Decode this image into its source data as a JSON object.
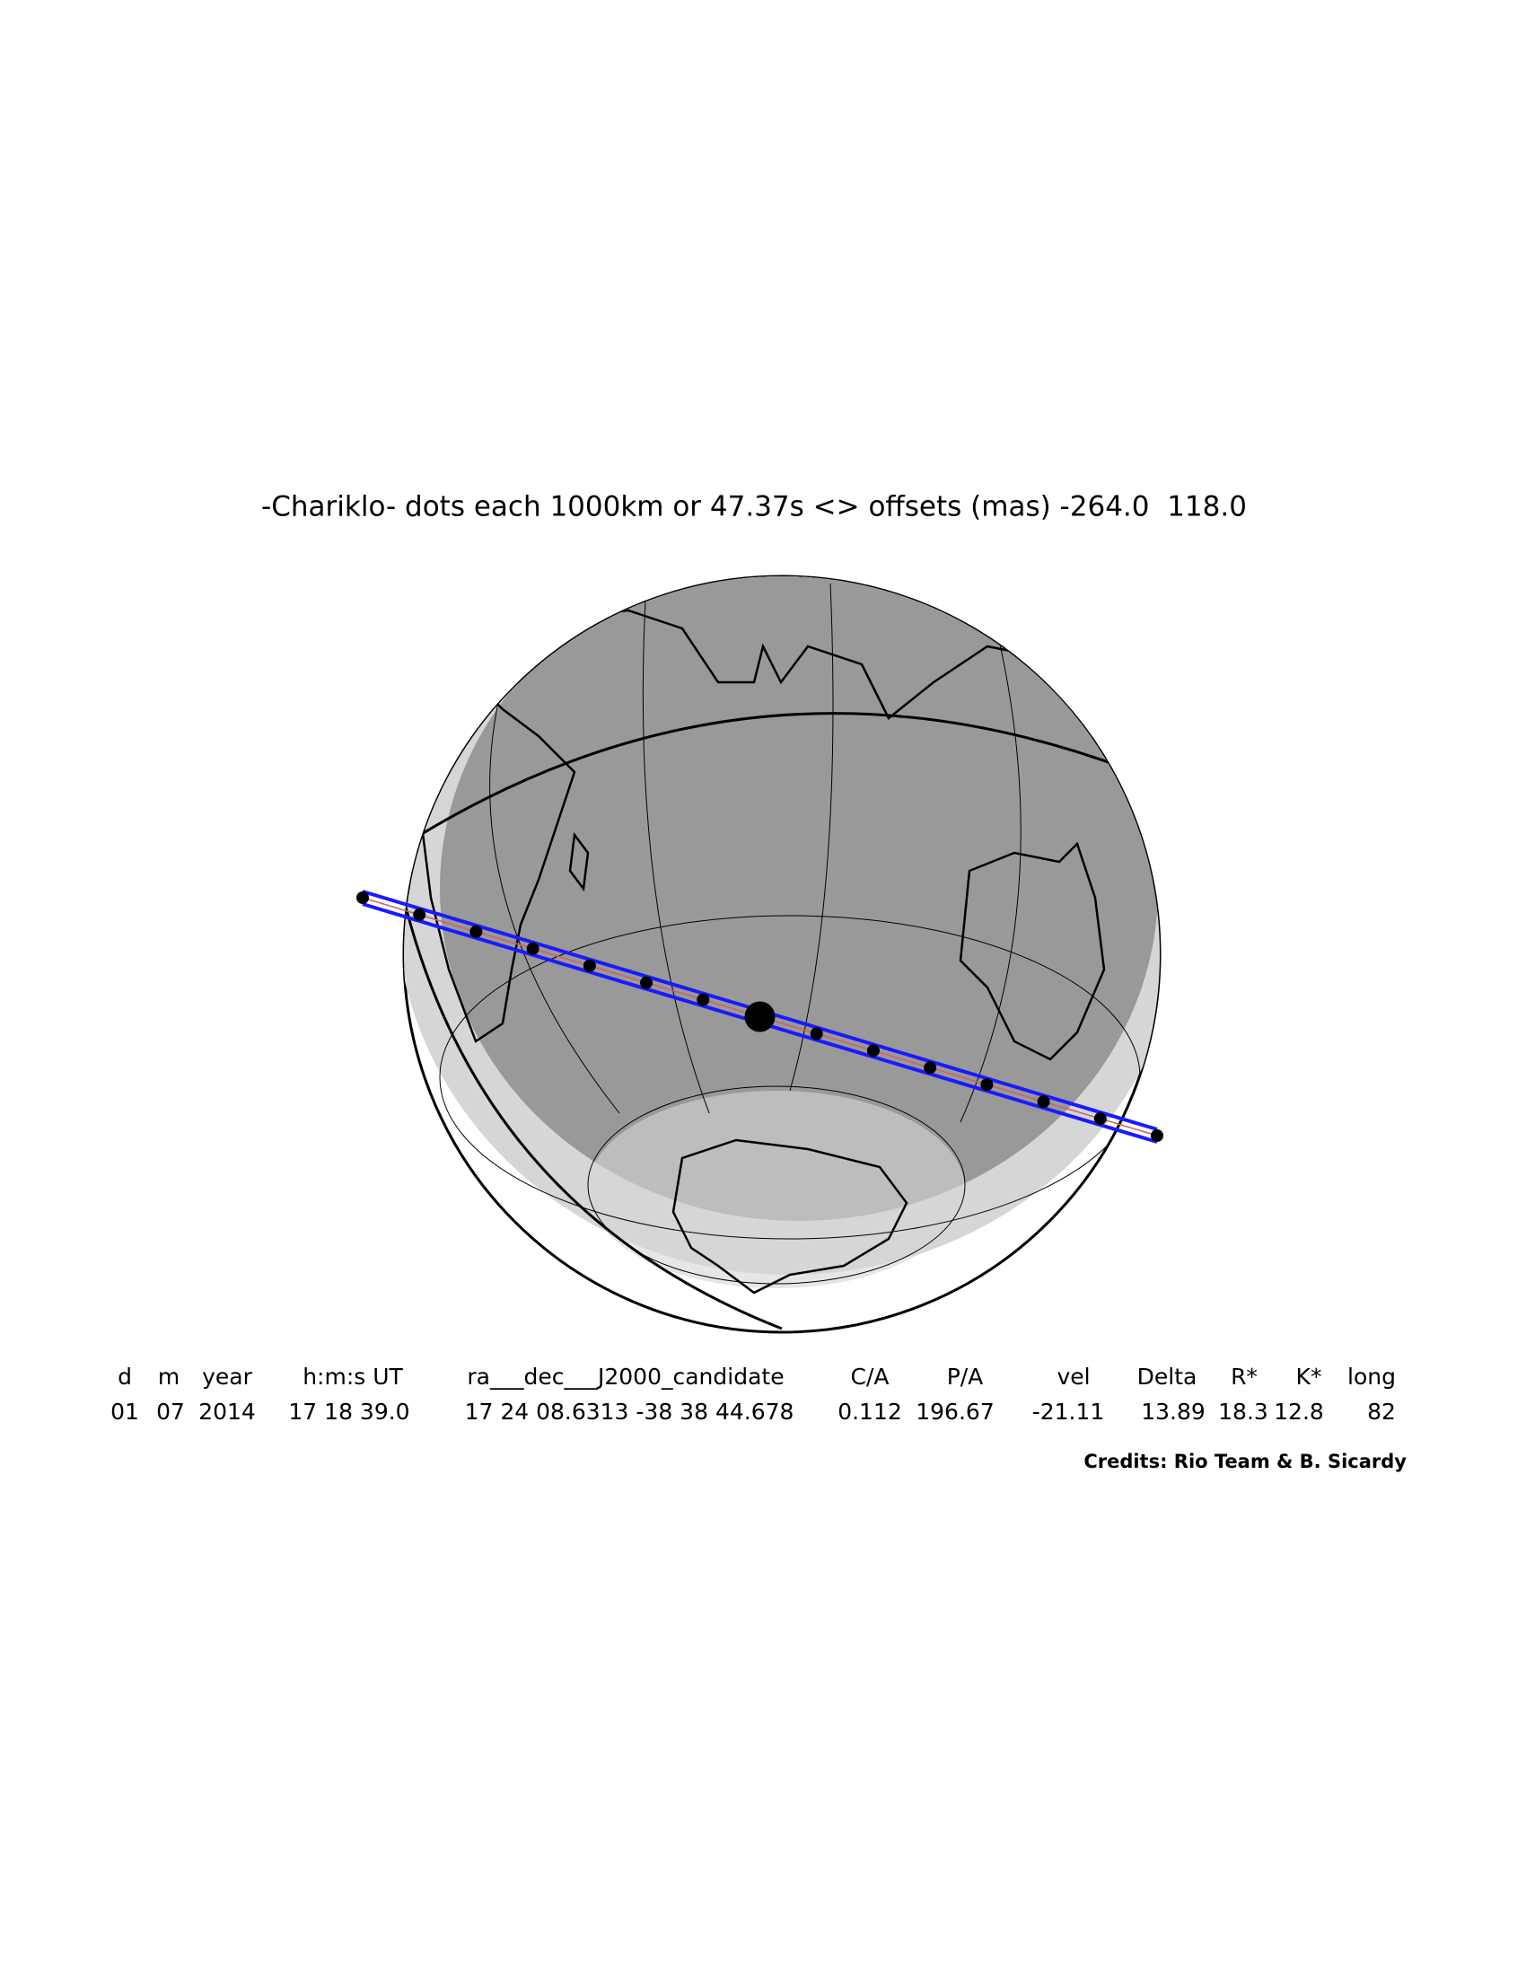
{
  "title": "-Chariklo- dots each 1000km or 47.37s <> offsets (mas) -264.0  118.0",
  "table": {
    "header": [
      "d",
      "m",
      "year",
      "h:m:s UT",
      "ra___dec___J2000_candidate",
      "C/A",
      "P/A",
      "vel",
      "Delta",
      "R*",
      "K*",
      "long"
    ],
    "rows": [
      [
        "01",
        "07",
        "2014",
        "17 18 39.0",
        "17 24 08.6313 -38 38 44.678",
        "0.112",
        "196.67",
        "-21.11",
        "13.89",
        "18.3",
        "12.8",
        "82"
      ]
    ]
  },
  "credits": "Credits: Rio Team & B. Sicardy"
}
